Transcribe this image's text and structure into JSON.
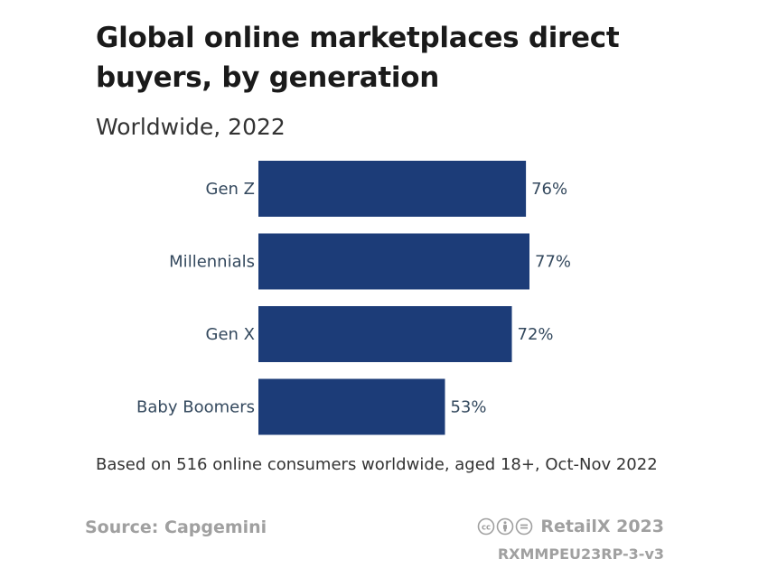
{
  "chart_data": {
    "type": "bar",
    "orientation": "horizontal",
    "title": "Global online marketplaces direct buyers, by generation",
    "subtitle": "Worldwide, 2022",
    "categories": [
      "Gen Z",
      "Millennials",
      "Gen X",
      "Baby Boomers"
    ],
    "values": [
      76,
      77,
      72,
      53
    ],
    "value_labels": [
      "76%",
      "77%",
      "72%",
      "53%"
    ],
    "xlim": [
      0,
      77
    ],
    "bar_color": "#1c3c78",
    "grid": false,
    "legend": "none"
  },
  "note": "Based on 516 online consumers worldwide, aged 18+, Oct-Nov 2022",
  "footer": {
    "source": "Source: Capgemini",
    "brand": "RetailX 2023",
    "license_icon": "creative-commons-by-nd-icon",
    "code": "RXMMPEU23RP-3-v3"
  }
}
